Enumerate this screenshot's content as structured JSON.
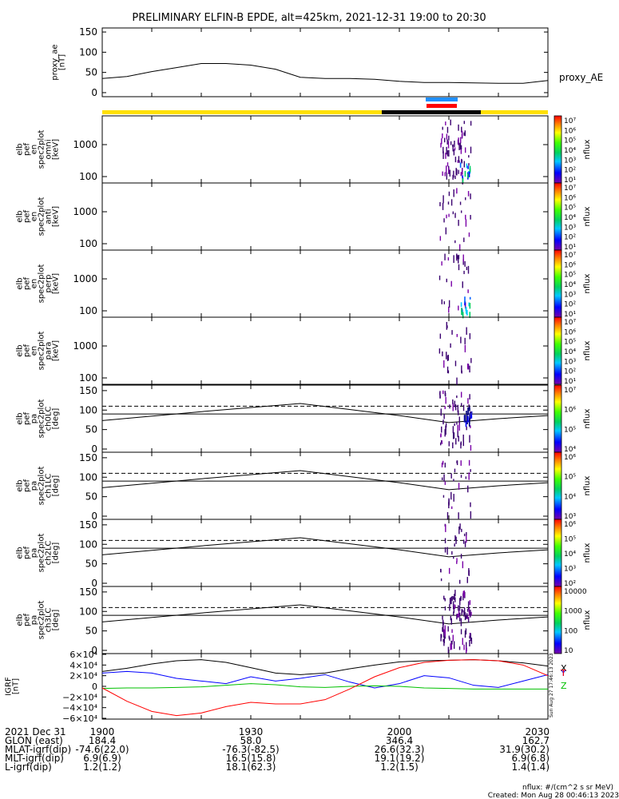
{
  "title": "PRELIMINARY ELFIN-B EPDE, alt=425km, 2021-12-31 19:00 to 20:30",
  "colors": {
    "yellow_bar": "#ffe000",
    "black_bar": "#000000",
    "blue_marker": "#1e90ff",
    "red_marker": "#ff0000",
    "grf_x": "#000000",
    "grf_y": "#0000ff",
    "grf_z": "#00c000",
    "grf_t": "#ff0000"
  },
  "chart_data": [
    {
      "type": "line",
      "panel": "proxy_ae",
      "ylabel": [
        "proxy_ae",
        "[nT]"
      ],
      "right_label": "proxy_AE",
      "ylim": [
        -10,
        160
      ],
      "yticks": [
        0,
        50,
        100,
        150
      ],
      "x": [
        0,
        5,
        10,
        15,
        20,
        25,
        30,
        35,
        40,
        45,
        50,
        55,
        60,
        65,
        70,
        75,
        80,
        85,
        90
      ],
      "values": [
        35,
        40,
        52,
        62,
        72,
        72,
        68,
        58,
        38,
        35,
        35,
        33,
        28,
        25,
        25,
        24,
        23,
        23,
        30
      ]
    },
    {
      "type": "heatmap",
      "panel": "omni",
      "ylabel": [
        "elb",
        "pef",
        "en",
        "spec2plot",
        "omni",
        "[keV]"
      ],
      "yticks": [
        100,
        1000
      ],
      "colorbar": {
        "label": "nflux",
        "ticks": [
          "10⁷",
          "10⁶",
          "10⁵",
          "10⁴",
          "10³",
          "10²",
          "10¹"
        ]
      }
    },
    {
      "type": "heatmap",
      "panel": "anti",
      "ylabel": [
        "elb",
        "pef",
        "en",
        "spec2plot",
        "anti",
        "[keV]"
      ],
      "yticks": [
        100,
        1000
      ],
      "colorbar": {
        "label": "nflux",
        "ticks": [
          "10⁷",
          "10⁶",
          "10⁵",
          "10⁴",
          "10³",
          "10²",
          "10¹"
        ]
      }
    },
    {
      "type": "heatmap",
      "panel": "perp",
      "ylabel": [
        "elb",
        "pef",
        "en",
        "spec2plot",
        "perp",
        "[keV]"
      ],
      "yticks": [
        100,
        1000
      ],
      "colorbar": {
        "label": "nflux",
        "ticks": [
          "10⁷",
          "10⁶",
          "10⁵",
          "10⁴",
          "10³",
          "10²",
          "10¹"
        ]
      }
    },
    {
      "type": "heatmap",
      "panel": "para",
      "ylabel": [
        "elb",
        "pef",
        "en",
        "spec2plot",
        "para",
        "[keV]"
      ],
      "yticks": [
        100,
        1000
      ],
      "colorbar": {
        "label": "nflux",
        "ticks": [
          "10⁷",
          "10⁶",
          "10⁵",
          "10⁴",
          "10³",
          "10²",
          "10¹"
        ]
      }
    },
    {
      "type": "heatmap",
      "panel": "ch0LC",
      "ylabel": [
        "elb",
        "pef",
        "pa",
        "spec2plot",
        "ch0LC",
        "[deg]"
      ],
      "yticks": [
        0,
        50,
        100,
        150
      ],
      "colorbar": {
        "label": "nflux",
        "ticks": [
          "10⁷",
          "10⁶",
          "10⁵",
          "10⁴"
        ]
      }
    },
    {
      "type": "heatmap",
      "panel": "ch1LC",
      "ylabel": [
        "elb",
        "pef",
        "pa",
        "spec2plot",
        "ch1LC",
        "[deg]"
      ],
      "yticks": [
        0,
        50,
        100,
        150
      ],
      "colorbar": {
        "label": "nflux",
        "ticks": [
          "10⁶",
          "10⁵",
          "10⁴",
          "10³"
        ]
      }
    },
    {
      "type": "heatmap",
      "panel": "ch2LC",
      "ylabel": [
        "elb",
        "pef",
        "pa",
        "spec2plot",
        "ch2LC",
        "[deg]"
      ],
      "yticks": [
        0,
        50,
        100,
        150
      ],
      "colorbar": {
        "label": "nflux",
        "ticks": [
          "10⁶",
          "10⁵",
          "10⁴",
          "10³",
          "10²"
        ]
      }
    },
    {
      "type": "heatmap",
      "panel": "ch3LC",
      "ylabel": [
        "elb",
        "pef",
        "pa",
        "spec2plot",
        "ch3LC",
        "[deg]"
      ],
      "yticks": [
        0,
        50,
        100,
        150
      ],
      "colorbar": {
        "label": "nflux",
        "ticks": [
          "10000",
          "1000",
          "100",
          "10"
        ]
      }
    },
    {
      "type": "line",
      "panel": "igrf",
      "ylabel": [
        "IGRF",
        "[nT]"
      ],
      "yticks": [
        "6×10⁴",
        "4×10⁴",
        "2×10⁴",
        "0",
        "−2×10⁴",
        "−4×10⁴",
        "−6×10⁴"
      ],
      "ylim": [
        -60000,
        60000
      ],
      "legend": [
        "X",
        "Y",
        "Z",
        "T"
      ],
      "x": [
        0,
        5,
        10,
        15,
        20,
        25,
        30,
        35,
        40,
        45,
        50,
        55,
        60,
        65,
        70,
        75,
        80,
        85,
        90
      ],
      "series": [
        {
          "values": [
            28000,
            34000,
            42000,
            48000,
            50000,
            45000,
            35000,
            25000,
            22000,
            25000,
            33000,
            40000,
            46000,
            48000,
            49000,
            50000,
            48000,
            44000,
            38000
          ]
        },
        {
          "values": [
            25000,
            28000,
            25000,
            15000,
            10000,
            5000,
            18000,
            10000,
            15000,
            22000,
            8000,
            -3000,
            5000,
            20000,
            16000,
            2000,
            -2000,
            10000,
            22000
          ]
        },
        {
          "values": [
            -4000,
            -3000,
            -3000,
            -2000,
            -1000,
            2000,
            5000,
            3000,
            -1000,
            -2000,
            0,
            1000,
            0,
            -3000,
            -4000,
            -5000,
            -5000,
            -5000,
            -5000
          ]
        },
        {
          "values": [
            -3000,
            -28000,
            -47000,
            -55000,
            -50000,
            -38000,
            -30000,
            -33000,
            -33000,
            -25000,
            -5000,
            18000,
            35000,
            45000,
            49000,
            50000,
            48000,
            40000,
            20000
          ]
        }
      ]
    }
  ],
  "side_label": "Sun Aug 27 17:46:13 2023",
  "footer": {
    "row_labels": [
      "2021 Dec 31",
      "GLON (east)",
      "MLAT-igrf(dip)",
      "MLT-igrf(dip)",
      "L-igrf(dip)"
    ],
    "columns": [
      {
        "tick": "1900",
        "values": [
          "184.4",
          "-74.6(22.0)",
          "6.9(6.9)",
          "1.2(1.2)"
        ]
      },
      {
        "tick": "1930",
        "values": [
          "58.0",
          "-76.3(-82.5)",
          "16.5(15.8)",
          "18.1(62.3)"
        ]
      },
      {
        "tick": "2000",
        "values": [
          "346.4",
          "26.6(32.3)",
          "19.1(19.2)",
          "1.2(1.5)"
        ]
      },
      {
        "tick": "2030",
        "values": [
          "162.7",
          "31.9(30.2)",
          "6.9(6.8)",
          "1.4(1.4)"
        ]
      }
    ],
    "units_note": "nflux: #/(cm^2 s sr MeV)",
    "created": "Created: Mon Aug 28 00:46:13 2023"
  }
}
